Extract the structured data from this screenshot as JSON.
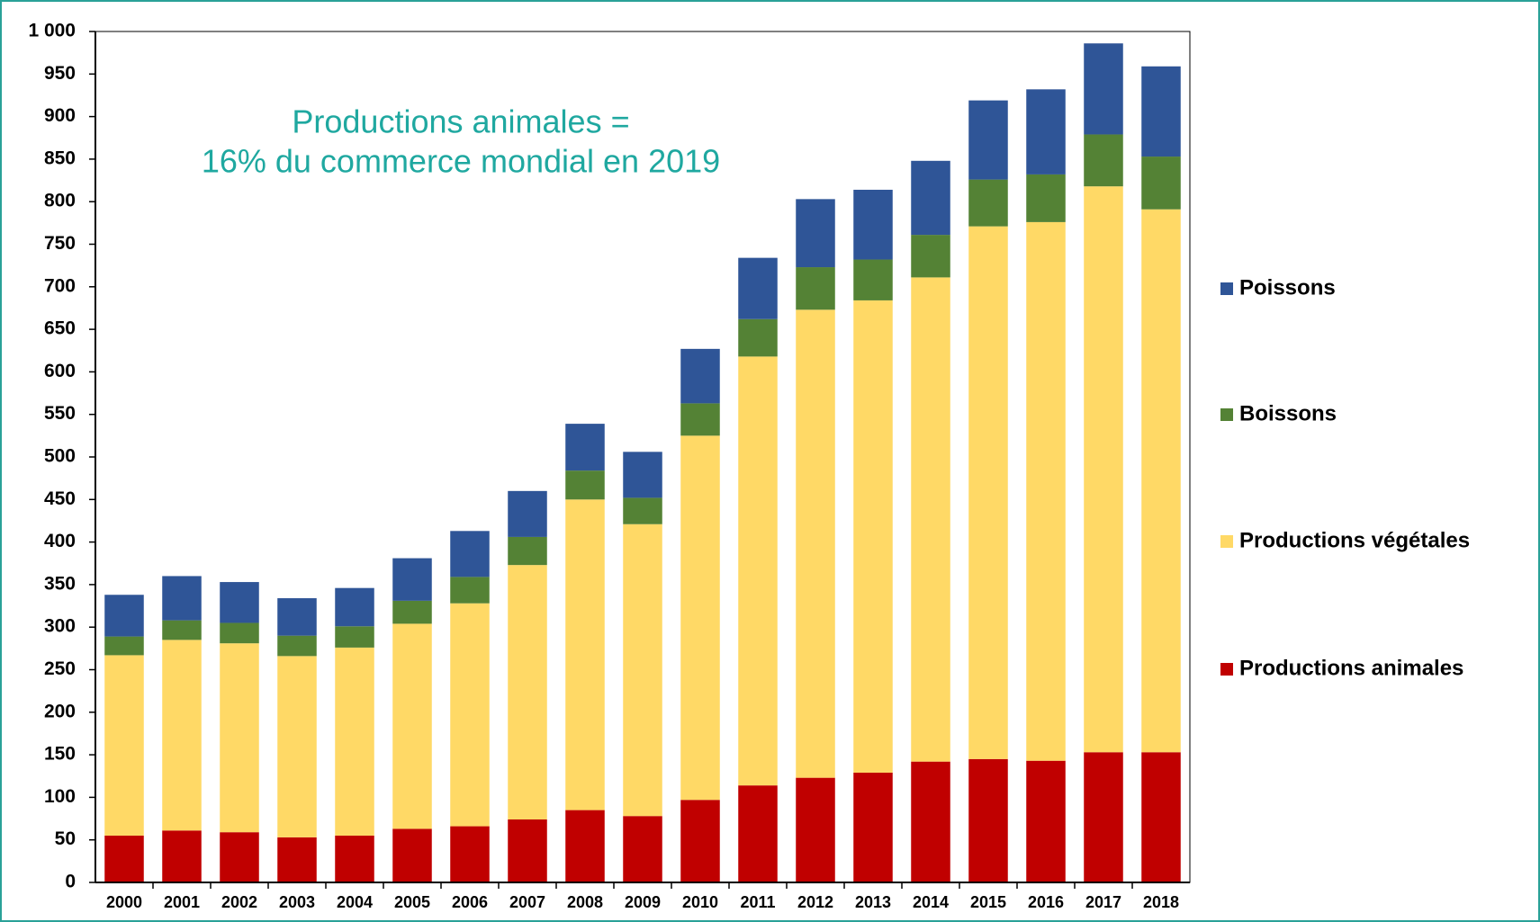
{
  "chart_data": {
    "type": "stacked_bar",
    "annotation": [
      "Productions animales =",
      "16% du commerce mondial en 2019"
    ],
    "categories": [
      "2000",
      "2001",
      "2002",
      "2003",
      "2004",
      "2005",
      "2006",
      "2007",
      "2008",
      "2009",
      "2010",
      "2011",
      "2012",
      "2013",
      "2014",
      "2015",
      "2016",
      "2017",
      "2018"
    ],
    "series": [
      {
        "name": "Productions animales",
        "color": "#c00000",
        "values": [
          55,
          61,
          59,
          53,
          55,
          63,
          66,
          74,
          85,
          78,
          97,
          114,
          123,
          129,
          142,
          145,
          143,
          153,
          153
        ]
      },
      {
        "name": "Productions végétales",
        "color": "#ffd966",
        "values": [
          212,
          224,
          222,
          213,
          221,
          241,
          262,
          299,
          365,
          343,
          428,
          504,
          550,
          555,
          569,
          626,
          633,
          665,
          638
        ]
      },
      {
        "name": "Boissons",
        "color": "#548235",
        "values": [
          22,
          23,
          24,
          24,
          25,
          27,
          31,
          33,
          34,
          31,
          38,
          44,
          50,
          48,
          50,
          55,
          56,
          61,
          62
        ]
      },
      {
        "name": "Poissons",
        "color": "#2f5597",
        "values": [
          49,
          52,
          48,
          44,
          45,
          50,
          54,
          54,
          55,
          54,
          64,
          72,
          80,
          82,
          87,
          93,
          100,
          107,
          106
        ]
      }
    ],
    "ylim": [
      0,
      1000
    ],
    "yticks": [
      0,
      50,
      100,
      150,
      200,
      250,
      300,
      350,
      400,
      450,
      500,
      550,
      600,
      650,
      700,
      750,
      800,
      850,
      900,
      950,
      {
        "value": 1000,
        "label": "1 000"
      }
    ],
    "legend": "right"
  }
}
